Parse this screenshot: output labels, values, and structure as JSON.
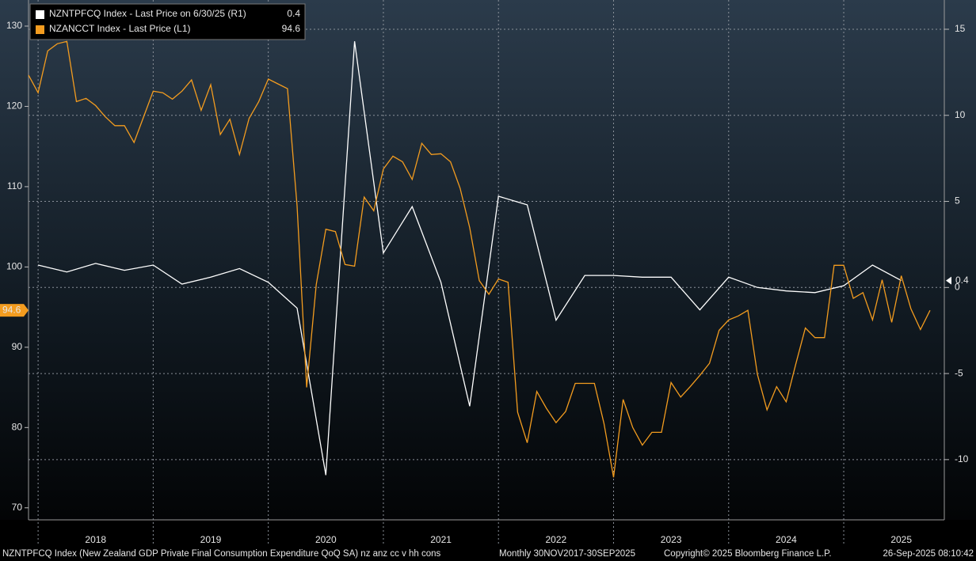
{
  "chart_data": {
    "type": "line",
    "xlim": [
      "2017-11",
      "2025-09"
    ],
    "xticks": [
      2018,
      2019,
      2020,
      2021,
      2022,
      2023,
      2024,
      2025
    ],
    "ylim": [
      68.5,
      133.25
    ],
    "yticks": [
      70,
      80,
      90,
      100,
      110,
      120,
      130
    ],
    "y2lim": [
      -13.5,
      16.7
    ],
    "y2ticks": [
      -10,
      -5,
      0,
      5,
      10,
      15
    ],
    "grid": true,
    "legend": "upper left",
    "series": [
      {
        "name": "NZNTPFCQ Index - Last Price on 6/30/25 (R1)",
        "color": "#ffffff",
        "axis": "y2",
        "x": [
          "2017-12",
          "2018-03",
          "2018-06",
          "2018-09",
          "2018-12",
          "2019-03",
          "2019-06",
          "2019-09",
          "2019-12",
          "2020-03",
          "2020-06",
          "2020-09",
          "2020-12",
          "2021-03",
          "2021-06",
          "2021-09",
          "2021-12",
          "2022-03",
          "2022-06",
          "2022-09",
          "2022-12",
          "2023-03",
          "2023-06",
          "2023-09",
          "2023-12",
          "2024-03",
          "2024-06",
          "2024-09",
          "2024-12",
          "2025-03",
          "2025-06"
        ],
        "values": [
          1.3,
          0.9,
          1.4,
          1.0,
          1.3,
          0.2,
          0.6,
          1.1,
          0.3,
          -1.2,
          -10.9,
          14.3,
          2.0,
          4.7,
          0.3,
          -6.9,
          5.3,
          4.8,
          -1.9,
          0.7,
          0.7,
          0.6,
          0.6,
          -1.3,
          0.6,
          0.0,
          -0.2,
          -0.3,
          0.1,
          1.3,
          0.4
        ]
      },
      {
        "name": "NZANCCT Index - Last Price (L1)",
        "color": "#f39c1f",
        "axis": "y",
        "x": [
          "2017-11",
          "2017-12",
          "2018-01",
          "2018-02",
          "2018-03",
          "2018-04",
          "2018-05",
          "2018-06",
          "2018-07",
          "2018-08",
          "2018-09",
          "2018-10",
          "2018-11",
          "2018-12",
          "2019-01",
          "2019-02",
          "2019-03",
          "2019-04",
          "2019-05",
          "2019-06",
          "2019-07",
          "2019-08",
          "2019-09",
          "2019-10",
          "2019-11",
          "2019-12",
          "2020-01",
          "2020-02",
          "2020-03",
          "2020-04",
          "2020-05",
          "2020-06",
          "2020-07",
          "2020-08",
          "2020-09",
          "2020-10",
          "2020-11",
          "2020-12",
          "2021-01",
          "2021-02",
          "2021-03",
          "2021-04",
          "2021-05",
          "2021-06",
          "2021-07",
          "2021-08",
          "2021-09",
          "2021-10",
          "2021-11",
          "2021-12",
          "2022-01",
          "2022-02",
          "2022-03",
          "2022-04",
          "2022-05",
          "2022-06",
          "2022-07",
          "2022-08",
          "2022-09",
          "2022-10",
          "2022-11",
          "2022-12",
          "2023-01",
          "2023-02",
          "2023-03",
          "2023-04",
          "2023-05",
          "2023-06",
          "2023-07",
          "2023-08",
          "2023-09",
          "2023-10",
          "2023-11",
          "2023-12",
          "2024-01",
          "2024-02",
          "2024-03",
          "2024-04",
          "2024-05",
          "2024-06",
          "2024-07",
          "2024-08",
          "2024-09",
          "2024-10",
          "2024-11",
          "2024-12",
          "2025-01",
          "2025-02",
          "2025-03",
          "2025-04",
          "2025-05",
          "2025-06",
          "2025-07",
          "2025-08",
          "2025-09"
        ],
        "values": [
          123.9,
          121.7,
          126.9,
          127.8,
          128.1,
          120.6,
          121.0,
          120.1,
          118.7,
          117.6,
          117.6,
          115.5,
          118.7,
          121.9,
          121.7,
          120.9,
          121.9,
          123.3,
          119.5,
          122.7,
          116.5,
          118.4,
          114.0,
          118.5,
          120.6,
          123.4,
          122.8,
          122.2,
          107.6,
          85.0,
          97.8,
          104.7,
          104.4,
          100.3,
          100.1,
          108.7,
          107.0,
          112.2,
          113.8,
          113.1,
          110.9,
          115.4,
          114.0,
          114.1,
          113.1,
          109.8,
          104.9,
          98.3,
          96.6,
          98.5,
          98.1,
          81.9,
          78.1,
          84.5,
          82.4,
          80.6,
          82.0,
          85.5,
          85.5,
          85.5,
          80.5,
          73.8,
          83.5,
          80.0,
          77.8,
          79.4,
          79.4,
          85.6,
          83.8,
          85.1,
          86.5,
          88.0,
          92.1,
          93.4,
          93.9,
          94.6,
          86.6,
          82.2,
          85.1,
          83.2,
          87.9,
          92.4,
          91.2,
          91.2,
          100.2,
          100.2,
          96.1,
          96.8,
          93.4,
          98.4,
          93.1,
          98.9,
          94.8,
          92.2,
          94.6
        ]
      }
    ]
  },
  "footer": {
    "description": "NZNTPFCQ Index (New Zealand GDP Private Final Consumption Expenditure QoQ SA) nz anz cc v hh cons",
    "frequency": "Monthly 30NOV2017-30SEP2025",
    "copyright": "Copyright© 2025 Bloomberg Finance L.P.",
    "timestamp": "26-Sep-2025 08:10:42"
  }
}
